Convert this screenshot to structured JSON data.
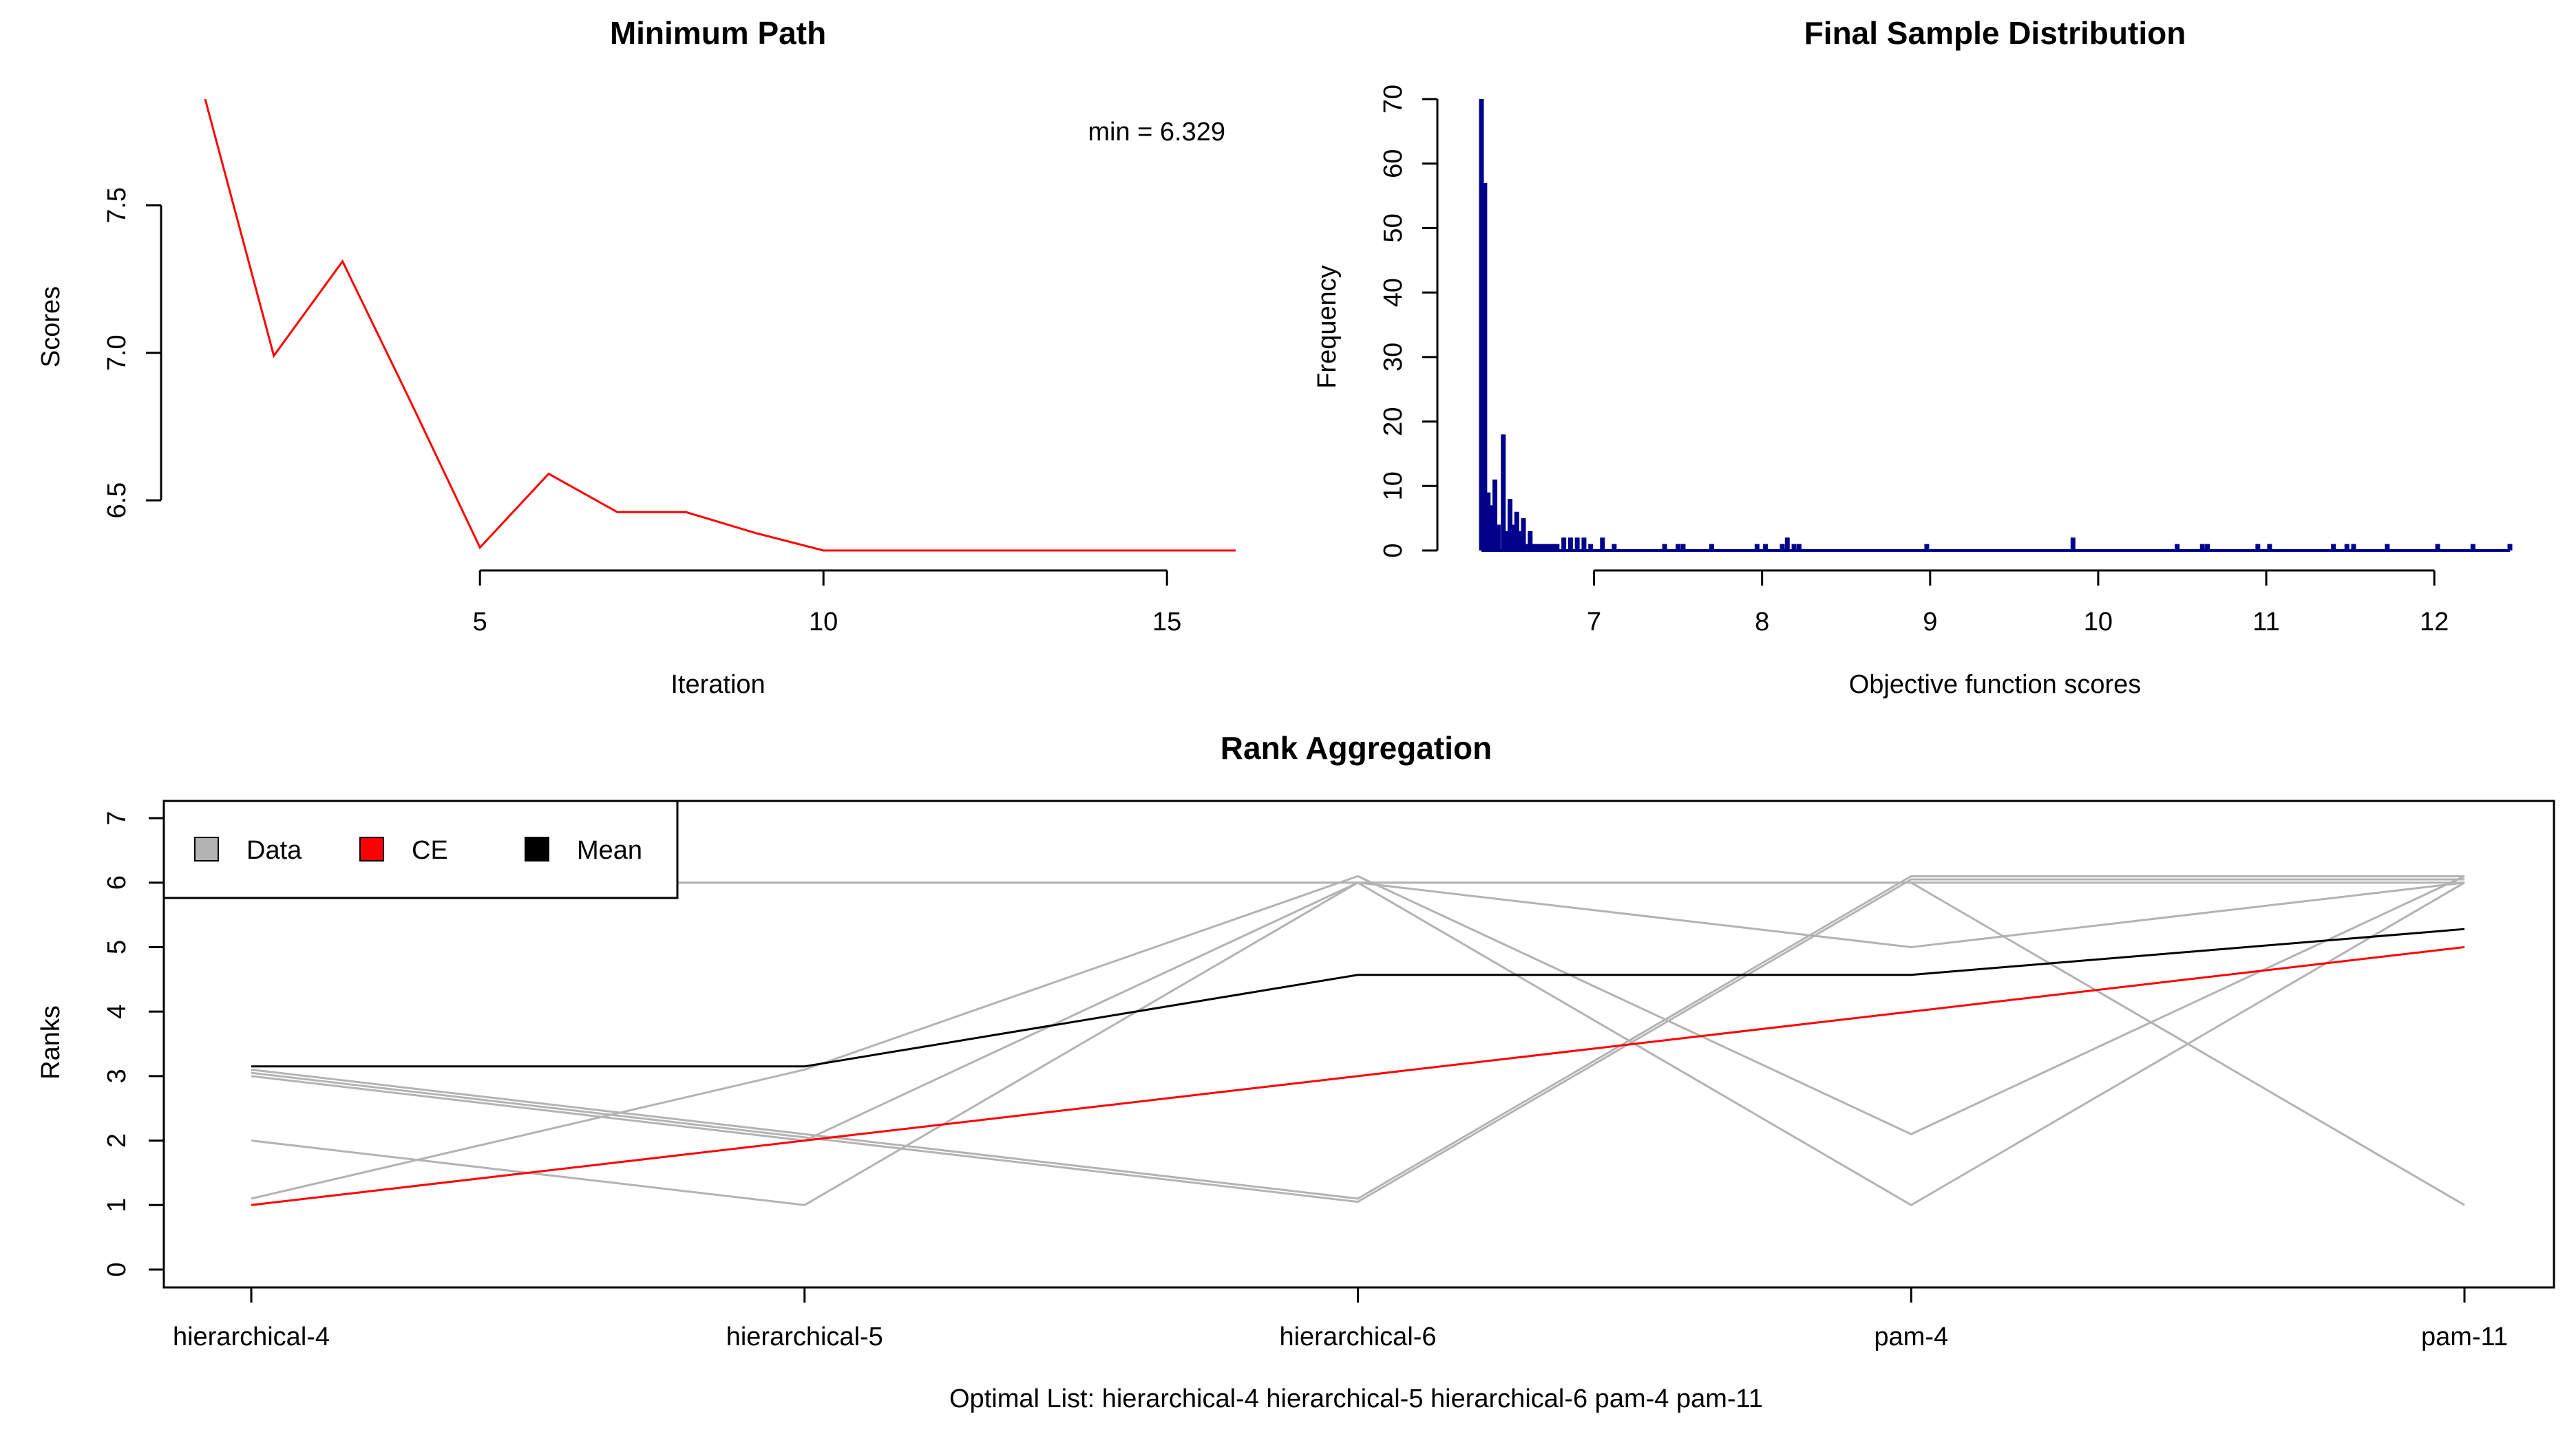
{
  "chart_data": [
    {
      "type": "line",
      "title": "Minimum Path",
      "xlabel": "Iteration",
      "ylabel": "Scores",
      "x": [
        1,
        2,
        3,
        4,
        5,
        6,
        7,
        8,
        9,
        10,
        11,
        12,
        13,
        14,
        15,
        16
      ],
      "series": [
        {
          "values": [
            7.86,
            6.99,
            7.31,
            6.83,
            6.34,
            6.59,
            6.46,
            6.46,
            6.39,
            6.33,
            6.33,
            6.33,
            6.33,
            6.33,
            6.33,
            6.33
          ]
        }
      ],
      "annotation": "min = 6.329",
      "xlim": [
        1,
        16
      ],
      "ylim": [
        6.33,
        7.86
      ],
      "xticks": [
        5,
        10,
        15
      ],
      "xtick_labels": [
        "5",
        "10",
        "15"
      ],
      "yticks": [
        6.5,
        7.0,
        7.5
      ],
      "ytick_labels": [
        "6.5",
        "7.0",
        "7.5"
      ],
      "color": "#ff0000",
      "grid": false
    },
    {
      "type": "bar",
      "title": "Final Sample Distribution",
      "xlabel": "Objective function scores",
      "ylabel": "Frequency",
      "x": [
        6.33,
        6.35,
        6.37,
        6.39,
        6.41,
        6.43,
        6.46,
        6.48,
        6.5,
        6.52,
        6.54,
        6.56,
        6.58,
        6.6,
        6.62,
        6.64,
        6.66,
        6.68,
        6.7,
        6.72,
        6.74,
        6.76,
        6.78,
        6.82,
        6.86,
        6.9,
        6.94,
        6.98,
        7.05,
        7.12,
        7.42,
        7.5,
        7.53,
        7.7,
        7.97,
        8.02,
        8.12,
        8.15,
        8.19,
        8.22,
        8.98,
        9.85,
        10.47,
        10.62,
        10.65,
        10.95,
        11.02,
        11.4,
        11.48,
        11.52,
        11.72,
        12.02,
        12.23,
        12.45
      ],
      "values": [
        70,
        57,
        9,
        7,
        11,
        4,
        18,
        3,
        8,
        4,
        6,
        3,
        5,
        1,
        3,
        1,
        1,
        1,
        1,
        1,
        1,
        1,
        1,
        2,
        2,
        2,
        2,
        1,
        2,
        1,
        1,
        1,
        1,
        1,
        1,
        1,
        1,
        2,
        1,
        1,
        1,
        2,
        1,
        1,
        1,
        1,
        1,
        1,
        1,
        1,
        1,
        1,
        1,
        1
      ],
      "xlim": [
        6.33,
        12.45
      ],
      "ylim": [
        0,
        70
      ],
      "xticks": [
        7,
        8,
        9,
        10,
        11,
        12
      ],
      "xtick_labels": [
        "7",
        "8",
        "9",
        "10",
        "11",
        "12"
      ],
      "yticks": [
        0,
        10,
        20,
        30,
        40,
        50,
        60,
        70
      ],
      "ytick_labels": [
        "0",
        "10",
        "20",
        "30",
        "40",
        "50",
        "60",
        "70"
      ],
      "color": "#00008b",
      "grid": false
    },
    {
      "type": "line",
      "title": "Rank Aggregation",
      "xlabel": "Optimal List: hierarchical-4 hierarchical-5 hierarchical-6 pam-4 pam-11",
      "ylabel": "Ranks",
      "categories": [
        "hierarchical-4",
        "hierarchical-5",
        "hierarchical-6",
        "pam-4",
        "pam-11"
      ],
      "yticks": [
        0,
        1,
        2,
        3,
        4,
        5,
        6,
        7
      ],
      "ytick_labels": [
        "0",
        "1",
        "2",
        "3",
        "4",
        "5",
        "6",
        "7"
      ],
      "ylim": [
        -0.35,
        7.35
      ],
      "legend": {
        "position": "top-left",
        "entries": [
          {
            "label": "Data",
            "color": "#b3b3b3"
          },
          {
            "label": "CE",
            "color": "#ff0000"
          },
          {
            "label": "Mean",
            "color": "#000000"
          }
        ]
      },
      "data_lines": [
        [
          6,
          6,
          6,
          6,
          6
        ],
        [
          3.05,
          2.05,
          1.05,
          6.05,
          6.05
        ],
        [
          3.1,
          2.1,
          1.1,
          6.1,
          6.1
        ],
        [
          2,
          1,
          6,
          5,
          6
        ],
        [
          1.1,
          3.1,
          6.1,
          2.1,
          6.1
        ],
        [
          3,
          2,
          6,
          1,
          6
        ],
        [
          6,
          6,
          6,
          6,
          1
        ]
      ],
      "series": [
        {
          "name": "CE",
          "values": [
            1,
            2,
            3,
            4,
            5
          ],
          "color": "#ff0000"
        },
        {
          "name": "Mean",
          "values": [
            3.15,
            3.15,
            4.57,
            4.57,
            5.28
          ],
          "color": "#000000"
        }
      ],
      "grid": false
    }
  ]
}
